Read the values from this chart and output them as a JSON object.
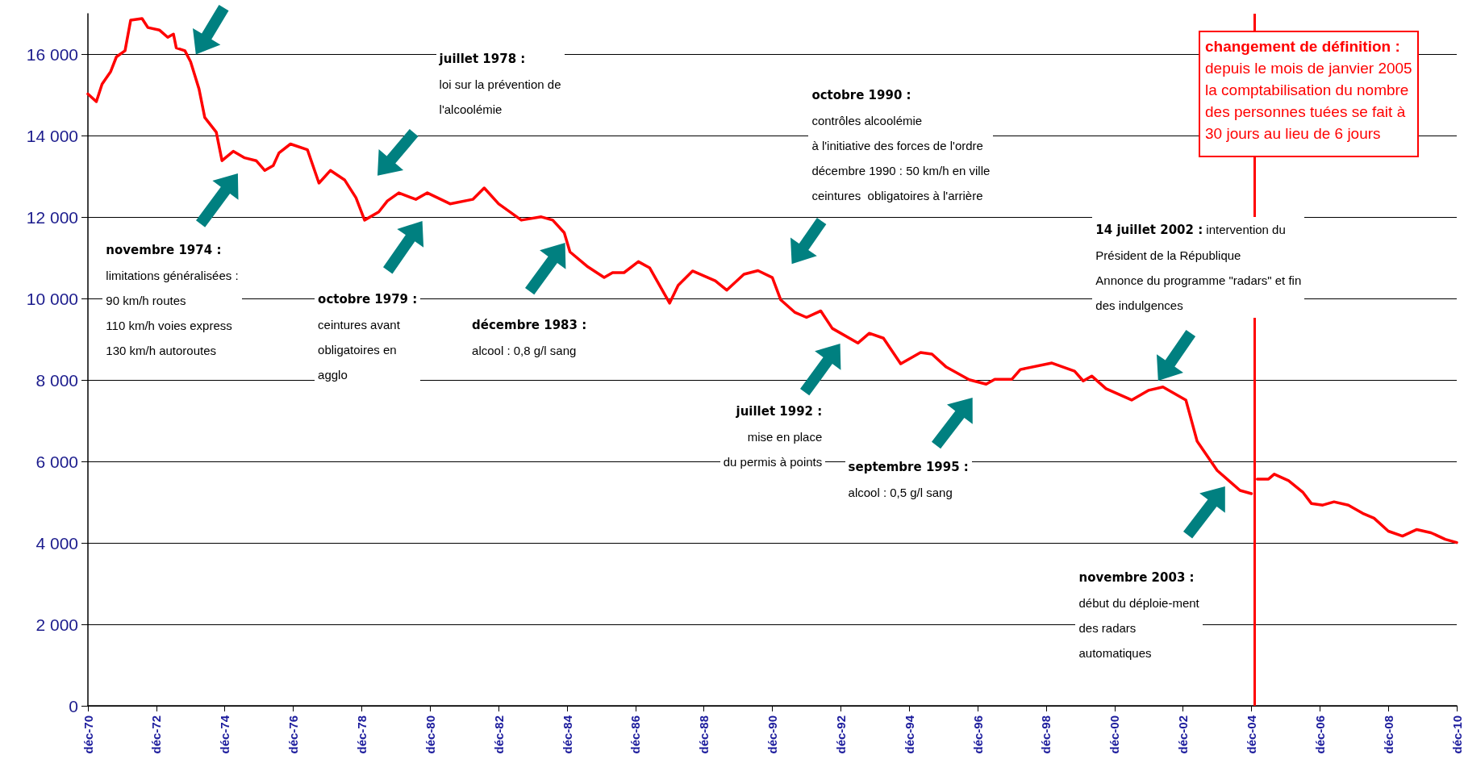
{
  "chart_data": {
    "type": "line",
    "x": [
      "1970-12",
      "1971-03",
      "1971-05",
      "1971-08",
      "1971-10",
      "1972-01",
      "1972-03",
      "1972-07",
      "1972-09",
      "1973-01",
      "1973-04",
      "1973-06",
      "1973-07",
      "1973-10",
      "1973-12",
      "1974-03",
      "1974-05",
      "1974-09",
      "1974-11",
      "1975-03",
      "1975-07",
      "1975-11",
      "1976-02",
      "1976-05",
      "1976-07",
      "1976-11",
      "1977-05",
      "1977-09",
      "1978-01",
      "1978-06",
      "1978-10",
      "1979-01",
      "1979-06",
      "1979-09",
      "1980-01",
      "1980-07",
      "1980-11",
      "1981-07",
      "1982-03",
      "1982-07",
      "1982-12",
      "1983-08",
      "1984-03",
      "1984-07",
      "1984-11",
      "1985-01",
      "1985-07",
      "1986-01",
      "1986-04",
      "1986-08",
      "1987-01",
      "1987-05",
      "1987-12",
      "1988-03",
      "1988-08",
      "1989-04",
      "1989-08",
      "1990-02",
      "1990-07",
      "1990-12",
      "1991-03",
      "1991-08",
      "1991-12",
      "1992-05",
      "1992-09",
      "1993-06",
      "1993-10",
      "1994-03",
      "1994-09",
      "1995-04",
      "1995-08",
      "1996-01",
      "1996-09",
      "1997-03",
      "1997-06",
      "1997-12",
      "1998-03",
      "1999-02",
      "1999-10",
      "2000-01",
      "2000-04",
      "2000-09",
      "2001-06",
      "2001-12",
      "2002-05",
      "2003-01",
      "2003-05",
      "2003-12",
      "2004-08",
      "2004-12",
      "2005-01",
      "2005-02",
      "2005-06",
      "2005-08",
      "2006-01",
      "2006-06",
      "2006-09",
      "2007-01",
      "2007-05",
      "2007-10",
      "2008-03",
      "2008-07",
      "2008-12",
      "2009-05",
      "2009-10",
      "2010-03",
      "2010-08",
      "2010-12"
    ],
    "values": [
      15030,
      14840,
      15270,
      15580,
      15940,
      16090,
      16840,
      16880,
      16660,
      16600,
      16420,
      16500,
      16160,
      16090,
      15820,
      15150,
      14450,
      14090,
      13390,
      13620,
      13460,
      13390,
      13150,
      13270,
      13580,
      13800,
      13660,
      12840,
      13150,
      12920,
      12480,
      11930,
      12130,
      12400,
      12600,
      12440,
      12600,
      12330,
      12440,
      12720,
      12330,
      11930,
      12010,
      11930,
      11620,
      11150,
      10800,
      10520,
      10640,
      10640,
      10910,
      10760,
      9890,
      10330,
      10680,
      10440,
      10210,
      10600,
      10690,
      10520,
      9970,
      9660,
      9540,
      9700,
      9270,
      8910,
      9150,
      9030,
      8400,
      8680,
      8640,
      8320,
      8010,
      7900,
      8020,
      8020,
      8260,
      8420,
      8220,
      7980,
      8100,
      7790,
      7510,
      7750,
      7830,
      7510,
      6500,
      5780,
      5290,
      5210,
      null,
      5570,
      5570,
      5690,
      5530,
      5250,
      4970,
      4930,
      5010,
      4930,
      4730,
      4610,
      4290,
      4170,
      4330,
      4250,
      4090,
      4010
    ],
    "color": "#ff0000",
    "marker": "none",
    "line_style": "solid",
    "grid": "y",
    "xlim": [
      "1970-12",
      "2010-12"
    ],
    "xticks": [
      {
        "value": "1970-12",
        "label": "déc-70"
      },
      {
        "value": "1972-12",
        "label": "déc-72"
      },
      {
        "value": "1974-12",
        "label": "déc-74"
      },
      {
        "value": "1976-12",
        "label": "déc-76"
      },
      {
        "value": "1978-12",
        "label": "déc-78"
      },
      {
        "value": "1980-12",
        "label": "déc-80"
      },
      {
        "value": "1982-12",
        "label": "déc-82"
      },
      {
        "value": "1984-12",
        "label": "déc-84"
      },
      {
        "value": "1986-12",
        "label": "déc-86"
      },
      {
        "value": "1988-12",
        "label": "déc-88"
      },
      {
        "value": "1990-12",
        "label": "déc-90"
      },
      {
        "value": "1992-12",
        "label": "déc-92"
      },
      {
        "value": "1994-12",
        "label": "déc-94"
      },
      {
        "value": "1996-12",
        "label": "déc-96"
      },
      {
        "value": "1998-12",
        "label": "déc-98"
      },
      {
        "value": "2000-12",
        "label": "déc-00"
      },
      {
        "value": "2002-12",
        "label": "déc-02"
      },
      {
        "value": "2004-12",
        "label": "déc-04"
      },
      {
        "value": "2006-12",
        "label": "déc-06"
      },
      {
        "value": "2008-12",
        "label": "déc-08"
      },
      {
        "value": "2010-12",
        "label": "déc-10"
      }
    ],
    "ylim": [
      0,
      17000
    ],
    "yticks": [
      0,
      {
        "value": 2000,
        "label": "2 000"
      },
      {
        "value": 4000,
        "label": "4 000"
      },
      {
        "value": 6000,
        "label": "6 000"
      },
      {
        "value": 8000,
        "label": "8 000"
      },
      {
        "value": 10000,
        "label": "10 000"
      },
      {
        "value": 12000,
        "label": "12 000"
      },
      {
        "value": 14000,
        "label": "14 000"
      },
      {
        "value": 16000,
        "label": "16 000"
      }
    ],
    "ref_lines": [
      {
        "axis": "x",
        "value": "2005-01",
        "color": "#ff0000",
        "label": "changement de définition :\ndepuis le mois de janvier 2005\nla comptabilisation du nombre\ndes personnes tuées se fait à\n30 jours au lieu de 6 jours"
      }
    ],
    "annotations": [
      "juillet 1978 :\nloi sur la prévention de\nl'alcoolémie",
      "novembre 1974 :\nlimitations généralisées :\n90 km/h routes\n110 km/h voies express\n130 km/h autoroutes",
      "octobre 1979 :\nceintures avant\nobligatoires en\nagglo",
      "décembre 1983 :\nalcool : 0,8 g/l sang",
      "octobre 1990 :\ncontrôles alcoolémie\nà l'initiative des forces de l'ordre\ndécembre 1990 : 50 km/h en ville\nceintures  obligatoires à l'arrière",
      "juillet 1992 :\nmise en place\ndu permis à points",
      "septembre 1995 :\nalcool : 0,5 g/l sang",
      "14 juillet 2002 : intervention du\nPrésident de la République\nAnnonce du programme \"radars\" et fin\ndes indulgences",
      "novembre 2003 :\ndébut du déploie-ment\ndes radars\nautomatiques"
    ]
  }
}
